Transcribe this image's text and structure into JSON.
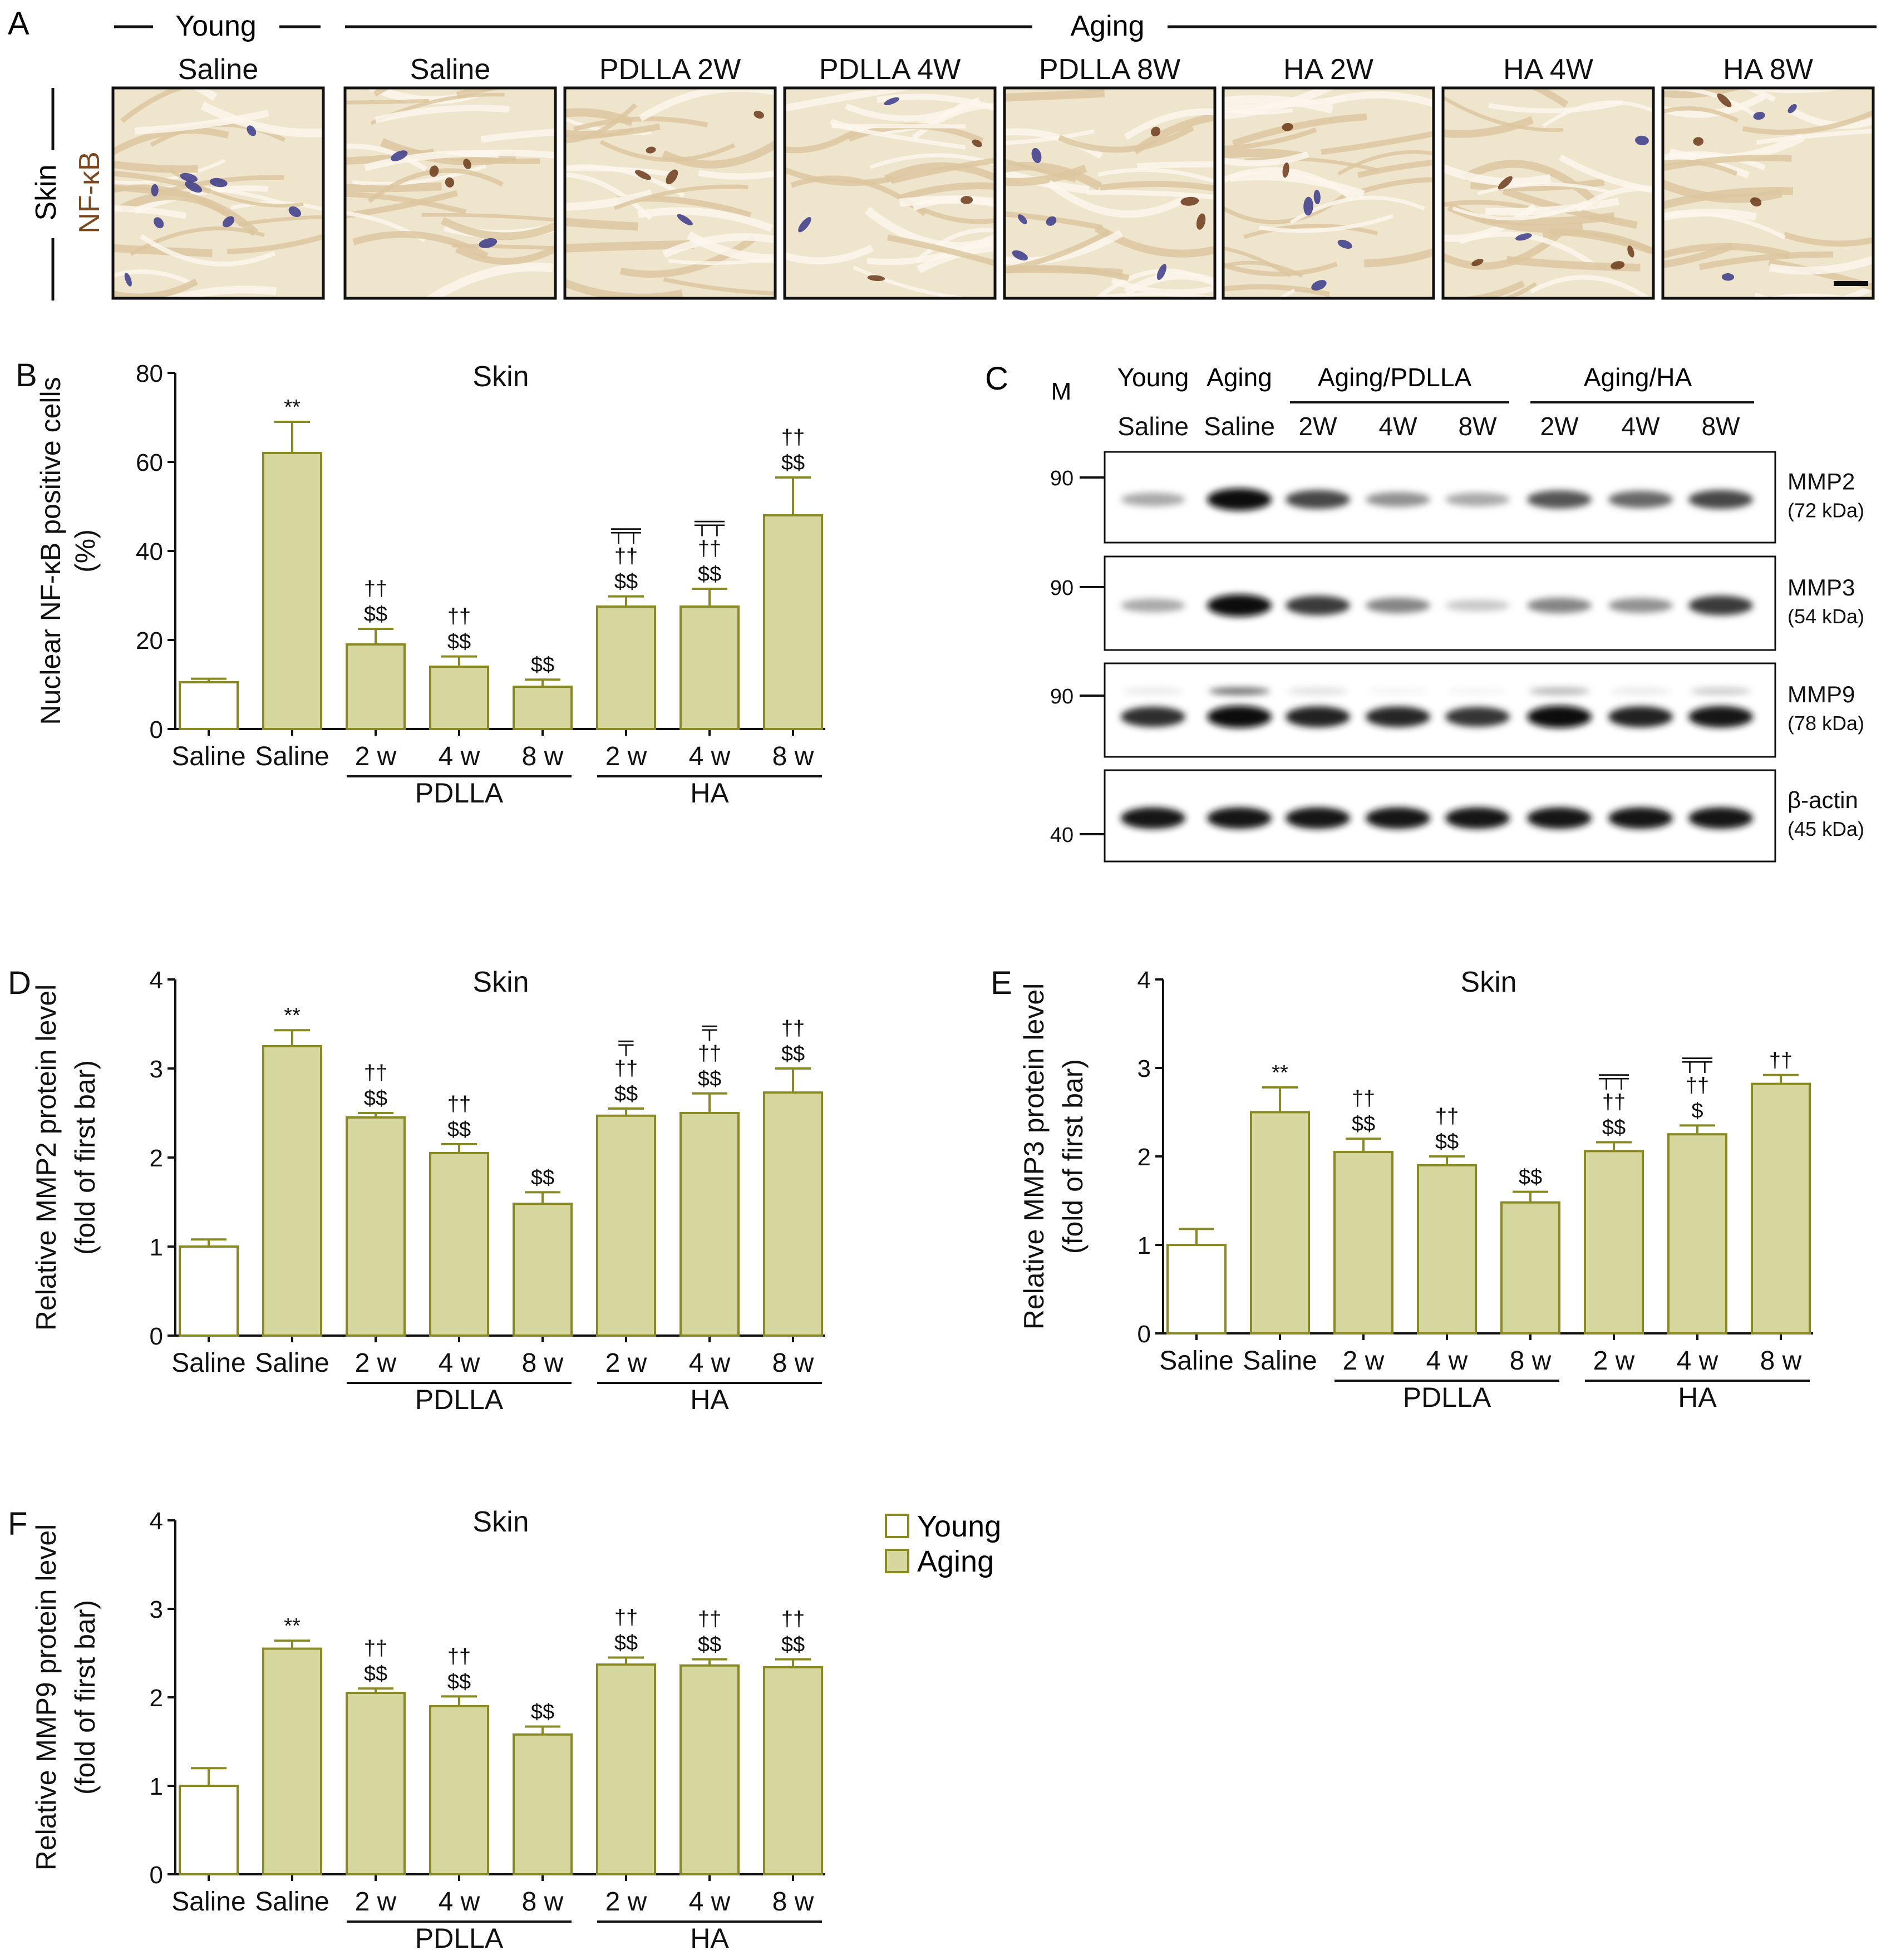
{
  "colors": {
    "young_fill": "#ffffff",
    "aging_fill": "#d6d69f",
    "bar_edge": "#8a8a22",
    "axis": "#111111",
    "nfkb_label": "#7a4a1e",
    "tissue_base": "#efe4cc"
  },
  "panel_a": {
    "letter": "A",
    "young_header": "Young",
    "aging_header": "Aging",
    "side_label": "Skin",
    "stain_label": "NF-κB",
    "columns": [
      "Saline",
      "Saline",
      "PDLLA 2W",
      "PDLLA 4W",
      "PDLLA 8W",
      "HA 2W",
      "HA 4W",
      "HA 8W"
    ],
    "scale_bar": "scale-bar"
  },
  "panel_c": {
    "letter": "C",
    "marker_label": "M",
    "group_headers": [
      "Young",
      "Aging",
      "Aging/PDLLA",
      "Aging/HA"
    ],
    "lane_labels": [
      "Saline",
      "Saline",
      "2W",
      "4W",
      "8W",
      "2W",
      "4W",
      "8W"
    ],
    "blots": [
      {
        "protein": "MMP2",
        "size": "(72 kDa)",
        "marker": "90",
        "band_intensity": [
          0.35,
          1.0,
          0.75,
          0.45,
          0.35,
          0.7,
          0.62,
          0.75
        ]
      },
      {
        "protein": "MMP3",
        "size": "(54 kDa)",
        "marker": "90",
        "band_intensity": [
          0.35,
          1.0,
          0.8,
          0.5,
          0.22,
          0.5,
          0.45,
          0.8
        ]
      },
      {
        "protein": "MMP9",
        "size": "(78 kDa)",
        "marker": "90",
        "band_intensity": [
          0.85,
          1.0,
          0.9,
          0.88,
          0.82,
          1.0,
          0.9,
          0.95
        ]
      },
      {
        "protein": "β-actin",
        "size": "(45 kDa)",
        "marker": "40",
        "band_intensity": [
          0.95,
          0.95,
          0.95,
          0.95,
          0.95,
          0.95,
          0.95,
          0.95
        ]
      }
    ]
  },
  "legend": {
    "items": [
      {
        "label": "Young",
        "color": "#ffffff"
      },
      {
        "label": "Aging",
        "color": "#d6d69f"
      }
    ]
  },
  "chart_data": [
    {
      "id": "B",
      "letter": "B",
      "type": "bar",
      "title": "Skin",
      "ylabel": [
        "Nuclear NF-κB positive cells",
        "(%)"
      ],
      "ylim": [
        0,
        80
      ],
      "yticks": [
        0,
        20,
        40,
        60,
        80
      ],
      "categories": [
        "Saline",
        "Saline",
        "2 w",
        "4 w",
        "8 w",
        "2 w",
        "4 w",
        "8 w"
      ],
      "groups": [
        {
          "label": "PDLLA",
          "from": 2,
          "to": 4
        },
        {
          "label": "HA",
          "from": 5,
          "to": 7
        }
      ],
      "series": [
        {
          "name": "Young",
          "values": [
            10.5,
            null,
            null,
            null,
            null,
            null,
            null,
            null
          ],
          "errors": [
            0.8,
            null,
            null,
            null,
            null,
            null,
            null,
            null
          ]
        },
        {
          "name": "Aging",
          "values": [
            null,
            62,
            19,
            14,
            9.5,
            27.5,
            27.5,
            48
          ],
          "errors": [
            null,
            7,
            3.5,
            2.3,
            1.6,
            2.3,
            4,
            8.5
          ]
        }
      ],
      "annotations": [
        [],
        [
          "**"
        ],
        [
          "††",
          "$$"
        ],
        [
          "††",
          "$$"
        ],
        [
          "$$"
        ],
        [
          "╤╤",
          "††",
          "$$"
        ],
        [
          "╤╤",
          "††",
          "$$"
        ],
        [
          "††",
          "$$"
        ]
      ]
    },
    {
      "id": "D",
      "letter": "D",
      "type": "bar",
      "title": "Skin",
      "ylabel": [
        "Relative MMP2 protein level",
        "(fold of first bar)"
      ],
      "ylim": [
        0,
        4
      ],
      "yticks": [
        0,
        1,
        2,
        3,
        4
      ],
      "categories": [
        "Saline",
        "Saline",
        "2 w",
        "4 w",
        "8 w",
        "2 w",
        "4 w",
        "8 w"
      ],
      "groups": [
        {
          "label": "PDLLA",
          "from": 2,
          "to": 4
        },
        {
          "label": "HA",
          "from": 5,
          "to": 7
        }
      ],
      "series": [
        {
          "name": "Young",
          "values": [
            1.0,
            null,
            null,
            null,
            null,
            null,
            null,
            null
          ],
          "errors": [
            0.08,
            null,
            null,
            null,
            null,
            null,
            null,
            null
          ]
        },
        {
          "name": "Aging",
          "values": [
            null,
            3.25,
            2.45,
            2.05,
            1.48,
            2.47,
            2.5,
            2.73
          ],
          "errors": [
            null,
            0.18,
            0.05,
            0.1,
            0.13,
            0.08,
            0.22,
            0.27
          ]
        }
      ],
      "annotations": [
        [],
        [
          "**"
        ],
        [
          "††",
          "$$"
        ],
        [
          "††",
          "$$"
        ],
        [
          "$$"
        ],
        [
          "╤",
          "††",
          "$$"
        ],
        [
          "╤",
          "††",
          "$$"
        ],
        [
          "††",
          "$$"
        ]
      ]
    },
    {
      "id": "E",
      "letter": "E",
      "type": "bar",
      "title": "Skin",
      "ylabel": [
        "Relative MMP3 protein level",
        "(fold of first bar)"
      ],
      "ylim": [
        0,
        4
      ],
      "yticks": [
        0,
        1,
        2,
        3,
        4
      ],
      "categories": [
        "Saline",
        "Saline",
        "2 w",
        "4 w",
        "8 w",
        "2 w",
        "4 w",
        "8 w"
      ],
      "groups": [
        {
          "label": "PDLLA",
          "from": 2,
          "to": 4
        },
        {
          "label": "HA",
          "from": 5,
          "to": 7
        }
      ],
      "series": [
        {
          "name": "Young",
          "values": [
            1.0,
            null,
            null,
            null,
            null,
            null,
            null,
            null
          ],
          "errors": [
            0.18,
            null,
            null,
            null,
            null,
            null,
            null,
            null
          ]
        },
        {
          "name": "Aging",
          "values": [
            null,
            2.5,
            2.05,
            1.9,
            1.48,
            2.06,
            2.25,
            2.82
          ],
          "errors": [
            null,
            0.28,
            0.15,
            0.1,
            0.12,
            0.1,
            0.1,
            0.1
          ]
        }
      ],
      "annotations": [
        [],
        [
          "**"
        ],
        [
          "††",
          "$$"
        ],
        [
          "††",
          "$$"
        ],
        [
          "$$"
        ],
        [
          "╤╤",
          "††",
          "$$"
        ],
        [
          "╤╤",
          "††",
          "$"
        ],
        [
          "††"
        ]
      ]
    },
    {
      "id": "F",
      "letter": "F",
      "type": "bar",
      "title": "Skin",
      "ylabel": [
        "Relative MMP9 protein level",
        "(fold of first bar)"
      ],
      "ylim": [
        0,
        4
      ],
      "yticks": [
        0,
        1,
        2,
        3,
        4
      ],
      "categories": [
        "Saline",
        "Saline",
        "2 w",
        "4 w",
        "8 w",
        "2 w",
        "4 w",
        "8 w"
      ],
      "groups": [
        {
          "label": "PDLLA",
          "from": 2,
          "to": 4
        },
        {
          "label": "HA",
          "from": 5,
          "to": 7
        }
      ],
      "series": [
        {
          "name": "Young",
          "values": [
            1.0,
            null,
            null,
            null,
            null,
            null,
            null,
            null
          ],
          "errors": [
            0.2,
            null,
            null,
            null,
            null,
            null,
            null,
            null
          ]
        },
        {
          "name": "Aging",
          "values": [
            null,
            2.55,
            2.05,
            1.9,
            1.58,
            2.37,
            2.36,
            2.34
          ],
          "errors": [
            null,
            0.09,
            0.05,
            0.11,
            0.09,
            0.08,
            0.07,
            0.09
          ]
        }
      ],
      "annotations": [
        [],
        [
          "**"
        ],
        [
          "††",
          "$$"
        ],
        [
          "††",
          "$$"
        ],
        [
          "$$"
        ],
        [
          "††",
          "$$"
        ],
        [
          "††",
          "$$"
        ],
        [
          "††",
          "$$"
        ]
      ]
    }
  ]
}
